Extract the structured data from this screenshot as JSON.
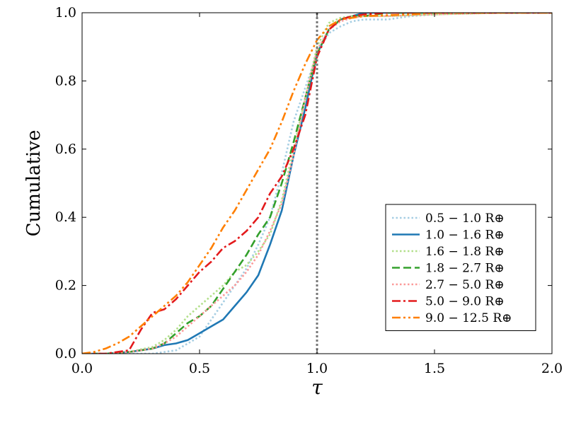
{
  "chart_data": {
    "type": "line",
    "xlabel": "τ",
    "ylabel": "Cumulative",
    "xlim": [
      0.0,
      2.0
    ],
    "ylim": [
      0.0,
      1.0
    ],
    "xticks": [
      "0.0",
      "0.5",
      "1.0",
      "1.5",
      "2.0"
    ],
    "yticks": [
      "0.0",
      "0.2",
      "0.4",
      "0.6",
      "0.8",
      "1.0"
    ],
    "grid": false,
    "legend_position": "lower-right",
    "reference_line": {
      "x": 1.0,
      "color": "#777777",
      "style": "dotted"
    },
    "series": [
      {
        "name": "0.5 − 1.0 R⊕",
        "color": "#a6cee3",
        "style": "dotted",
        "x": [
          0.0,
          0.1,
          0.2,
          0.3,
          0.4,
          0.5,
          0.55,
          0.6,
          0.65,
          0.7,
          0.75,
          0.8,
          0.85,
          0.9,
          0.95,
          1.0,
          1.05,
          1.1,
          1.15,
          1.2,
          1.3,
          1.4,
          1.5,
          1.6,
          1.8,
          2.0
        ],
        "y": [
          0.0,
          0.0,
          0.0,
          0.0,
          0.01,
          0.05,
          0.1,
          0.15,
          0.2,
          0.25,
          0.32,
          0.4,
          0.53,
          0.68,
          0.78,
          0.88,
          0.94,
          0.96,
          0.975,
          0.98,
          0.98,
          0.99,
          0.995,
          1.0,
          1.0,
          1.0
        ]
      },
      {
        "name": "1.0 − 1.6 R⊕",
        "color": "#1f78b4",
        "style": "solid",
        "x": [
          0.0,
          0.1,
          0.2,
          0.3,
          0.35,
          0.4,
          0.45,
          0.5,
          0.55,
          0.6,
          0.65,
          0.7,
          0.75,
          0.8,
          0.85,
          0.9,
          0.95,
          1.0,
          1.05,
          1.1,
          1.15,
          1.2,
          1.3,
          1.5,
          1.8,
          2.0
        ],
        "y": [
          0.0,
          0.0,
          0.005,
          0.015,
          0.025,
          0.03,
          0.04,
          0.06,
          0.08,
          0.1,
          0.14,
          0.18,
          0.23,
          0.32,
          0.42,
          0.58,
          0.72,
          0.88,
          0.95,
          0.98,
          0.99,
          1.0,
          1.0,
          1.0,
          1.0,
          1.0
        ]
      },
      {
        "name": "1.6 − 1.8 R⊕",
        "color": "#b2df8a",
        "style": "dotted",
        "x": [
          0.0,
          0.1,
          0.2,
          0.3,
          0.35,
          0.4,
          0.45,
          0.5,
          0.55,
          0.6,
          0.65,
          0.7,
          0.75,
          0.8,
          0.85,
          0.9,
          0.95,
          1.0,
          1.05,
          1.1,
          1.15,
          1.2,
          1.3,
          1.5,
          1.8,
          2.0
        ],
        "y": [
          0.0,
          0.0,
          0.005,
          0.02,
          0.04,
          0.07,
          0.11,
          0.14,
          0.17,
          0.2,
          0.24,
          0.26,
          0.3,
          0.35,
          0.45,
          0.6,
          0.75,
          0.9,
          0.97,
          0.985,
          0.99,
          0.99,
          0.99,
          0.995,
          1.0,
          1.0
        ]
      },
      {
        "name": "1.8 − 2.7 R⊕",
        "color": "#33a02c",
        "style": "dashed",
        "x": [
          0.0,
          0.1,
          0.2,
          0.25,
          0.3,
          0.35,
          0.4,
          0.45,
          0.5,
          0.55,
          0.6,
          0.65,
          0.7,
          0.75,
          0.8,
          0.85,
          0.9,
          0.95,
          1.0,
          1.05,
          1.1,
          1.15,
          1.2,
          1.3,
          1.5,
          1.8,
          2.0
        ],
        "y": [
          0.0,
          0.0,
          0.005,
          0.01,
          0.015,
          0.03,
          0.06,
          0.09,
          0.11,
          0.14,
          0.19,
          0.24,
          0.29,
          0.35,
          0.4,
          0.5,
          0.62,
          0.75,
          0.88,
          0.95,
          0.98,
          0.99,
          0.99,
          1.0,
          1.0,
          1.0,
          1.0
        ]
      },
      {
        "name": "2.7 − 5.0 R⊕",
        "color": "#fb9a99",
        "style": "dotted",
        "x": [
          0.0,
          0.1,
          0.2,
          0.3,
          0.35,
          0.4,
          0.45,
          0.5,
          0.55,
          0.6,
          0.65,
          0.7,
          0.75,
          0.8,
          0.85,
          0.9,
          0.95,
          1.0,
          1.05,
          1.1,
          1.15,
          1.2,
          1.3,
          1.5,
          1.8,
          2.0
        ],
        "y": [
          0.0,
          0.0,
          0.005,
          0.015,
          0.03,
          0.05,
          0.08,
          0.11,
          0.14,
          0.17,
          0.2,
          0.24,
          0.29,
          0.36,
          0.44,
          0.58,
          0.75,
          0.89,
          0.95,
          0.975,
          0.985,
          0.99,
          0.99,
          0.995,
          1.0,
          1.0
        ]
      },
      {
        "name": "5.0 − 9.0 R⊕",
        "color": "#e31a1c",
        "style": "dashdot",
        "x": [
          0.0,
          0.1,
          0.2,
          0.25,
          0.3,
          0.35,
          0.4,
          0.45,
          0.5,
          0.55,
          0.6,
          0.65,
          0.7,
          0.75,
          0.8,
          0.85,
          0.9,
          0.95,
          1.0,
          1.05,
          1.1,
          1.15,
          1.2,
          1.3,
          1.4,
          1.5,
          1.8,
          2.0
        ],
        "y": [
          0.0,
          0.0,
          0.01,
          0.07,
          0.12,
          0.13,
          0.16,
          0.2,
          0.24,
          0.27,
          0.31,
          0.33,
          0.36,
          0.4,
          0.47,
          0.52,
          0.6,
          0.7,
          0.87,
          0.95,
          0.98,
          0.99,
          0.995,
          1.0,
          1.0,
          1.0,
          1.0,
          1.0
        ]
      },
      {
        "name": "9.0 − 12.5 R⊕",
        "color": "#ff7f00",
        "style": "dashdotdot",
        "x": [
          0.0,
          0.05,
          0.1,
          0.15,
          0.2,
          0.25,
          0.3,
          0.35,
          0.4,
          0.45,
          0.5,
          0.55,
          0.6,
          0.65,
          0.7,
          0.75,
          0.8,
          0.85,
          0.9,
          0.95,
          1.0,
          1.05,
          1.1,
          1.2,
          1.4,
          1.5,
          1.8,
          2.0
        ],
        "y": [
          0.0,
          0.005,
          0.015,
          0.03,
          0.05,
          0.08,
          0.11,
          0.14,
          0.17,
          0.21,
          0.26,
          0.31,
          0.37,
          0.42,
          0.48,
          0.54,
          0.6,
          0.68,
          0.77,
          0.85,
          0.92,
          0.96,
          0.98,
          0.99,
          0.995,
          1.0,
          1.0,
          1.0
        ]
      }
    ]
  }
}
